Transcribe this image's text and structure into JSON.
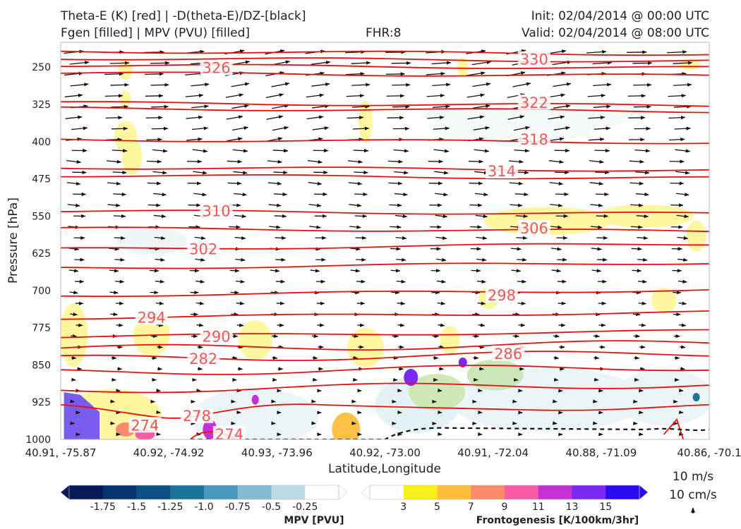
{
  "header": {
    "title_line1": "Theta-E (K) [red] | -D(theta-E)/DZ-[black]",
    "title_line2": "Fgen [filled] | MPV (PVU) [filled]",
    "fhr": "FHR:8",
    "init": "Init: 02/04/2014 @ 00:00 UTC",
    "valid": "Valid: 02/04/2014 @ 08:00 UTC"
  },
  "chart_data": {
    "type": "cross-section",
    "xlabel": "Latitude,Longitude",
    "ylabel": "Pressure [hPa]",
    "x_ticks": [
      "40.91, -75.87",
      "40.92, -74.92",
      "40.93, -73.96",
      "40.92, -73.00",
      "40.91, -72.04",
      "40.88, -71.09",
      "40.86, -70.1"
    ],
    "y_ticks": [
      250,
      325,
      400,
      475,
      550,
      625,
      700,
      775,
      850,
      925,
      1000
    ],
    "ylim": [
      1000,
      200
    ],
    "y_scale": "linear, inverted",
    "theta_e_contours": [
      {
        "label": "326",
        "p": 252,
        "x": 0.24
      },
      {
        "label": "330",
        "p": 235,
        "x": 0.73
      },
      {
        "label": "322",
        "p": 322,
        "x": 0.73
      },
      {
        "label": "318",
        "p": 396,
        "x": 0.73
      },
      {
        "label": "314",
        "p": 460,
        "x": 0.68
      },
      {
        "label": "310",
        "p": 540,
        "x": 0.24
      },
      {
        "label": "306",
        "p": 575,
        "x": 0.73
      },
      {
        "label": "302",
        "p": 617,
        "x": 0.22
      },
      {
        "label": "298",
        "p": 710,
        "x": 0.68
      },
      {
        "label": "294",
        "p": 755,
        "x": 0.14
      },
      {
        "label": "290",
        "p": 793,
        "x": 0.24
      },
      {
        "label": "282",
        "p": 838,
        "x": 0.22
      },
      {
        "label": "278",
        "p": 953,
        "x": 0.21
      },
      {
        "label": "274",
        "p": 990,
        "x": 0.26
      },
      {
        "label": "274",
        "p": 972,
        "x": 0.13
      },
      {
        "label": "286",
        "p": 828,
        "x": 0.69
      }
    ],
    "mpv_colorbar": {
      "label": "MPV [PVU]",
      "ticks": [
        "-1.75",
        "-1.5",
        "-1.25",
        "-1.0",
        "-0.75",
        "-0.5",
        "-0.25"
      ],
      "colors": [
        "#08195a",
        "#083572",
        "#0c4f86",
        "#1a7399",
        "#4a98bb",
        "#84bad2",
        "#bcdbe4",
        "#ffffff"
      ]
    },
    "fgen_colorbar": {
      "label": "Frontogenesis [K/100km/3hr]",
      "ticks": [
        "3",
        "5",
        "7",
        "9",
        "11",
        "13",
        "15"
      ],
      "colors": [
        "#ffffff",
        "#f7f01a",
        "#fdbe3c",
        "#fa8c6c",
        "#f75aa6",
        "#c532d4",
        "#7b28f0",
        "#2a0af5"
      ]
    },
    "vector_key": {
      "horizontal": "10 m/s",
      "vertical": "10 cm/s"
    },
    "grid": false
  }
}
